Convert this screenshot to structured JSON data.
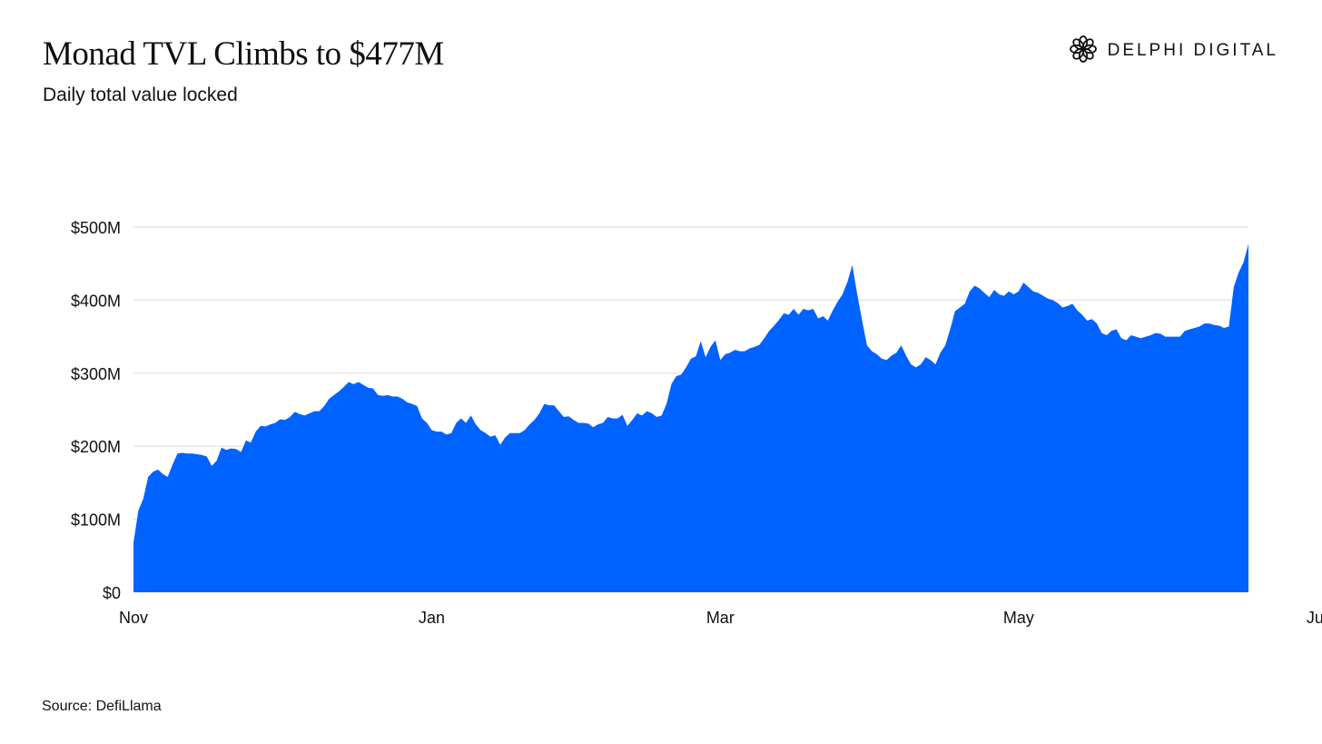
{
  "header": {
    "title": "Monad TVL Climbs to $477M",
    "subtitle": "Daily total value locked",
    "brand_name": "DELPHI DIGITAL",
    "brand_icon": "delphi-logo-icon"
  },
  "footer": {
    "source": "Source: DefiLlama"
  },
  "colors": {
    "area_fill": "#0062FF",
    "gridline": "#E6E6E6",
    "text": "#111111"
  },
  "chart_data": {
    "type": "area",
    "title": "Monad TVL Climbs to $477M",
    "subtitle": "Daily total value locked",
    "xlabel": "",
    "ylabel": "",
    "ylim": [
      0,
      500
    ],
    "y_unit": "$M",
    "y_ticks": [
      0,
      100,
      200,
      300,
      400,
      500
    ],
    "y_tick_labels": [
      "$0",
      "$100M",
      "$200M",
      "$300M",
      "$400M",
      "$500M"
    ],
    "x_tick_labels": [
      "Nov",
      "Jan",
      "Mar",
      "May",
      "Jul"
    ],
    "x_tick_index": [
      0,
      61,
      120,
      181,
      242
    ],
    "grid": true,
    "legend": "none",
    "series": [
      {
        "values": [
          68,
          112,
          128,
          158,
          165,
          168,
          162,
          158,
          175,
          190,
          191,
          190,
          190,
          189,
          188,
          186,
          173,
          180,
          198,
          195,
          197,
          196,
          192,
          208,
          205,
          220,
          228,
          227,
          230,
          232,
          237,
          236,
          240,
          247,
          244,
          242,
          245,
          248,
          248,
          255,
          265,
          270,
          275,
          281,
          288,
          285,
          288,
          284,
          280,
          279,
          270,
          269,
          270,
          268,
          268,
          265,
          260,
          258,
          255,
          238,
          232,
          222,
          220,
          220,
          216,
          218,
          232,
          238,
          232,
          242,
          230,
          222,
          218,
          213,
          215,
          202,
          212,
          218,
          218,
          218,
          222,
          230,
          236,
          245,
          258,
          256,
          256,
          248,
          240,
          241,
          236,
          232,
          232,
          231,
          226,
          230,
          232,
          240,
          238,
          238,
          243,
          228,
          236,
          245,
          242,
          248,
          245,
          240,
          242,
          258,
          285,
          296,
          298,
          308,
          320,
          323,
          344,
          322,
          336,
          345,
          318,
          326,
          328,
          332,
          330,
          330,
          334,
          336,
          339,
          348,
          358,
          365,
          373,
          382,
          380,
          388,
          380,
          388,
          386,
          388,
          375,
          378,
          372,
          386,
          398,
          408,
          425,
          448,
          408,
          372,
          338,
          330,
          326,
          320,
          318,
          324,
          328,
          338,
          324,
          312,
          308,
          312,
          322,
          318,
          312,
          328,
          338,
          360,
          385,
          390,
          395,
          412,
          420,
          416,
          410,
          404,
          414,
          408,
          406,
          412,
          408,
          412,
          424,
          418,
          412,
          410,
          406,
          402,
          400,
          396,
          390,
          392,
          395,
          386,
          380,
          372,
          374,
          368,
          355,
          352,
          358,
          360,
          348,
          345,
          352,
          350,
          348,
          350,
          352,
          355,
          354,
          350,
          350,
          350,
          350,
          358,
          360,
          362,
          364,
          368,
          368,
          366,
          365,
          362,
          364,
          418,
          438,
          452,
          477
        ]
      }
    ]
  }
}
